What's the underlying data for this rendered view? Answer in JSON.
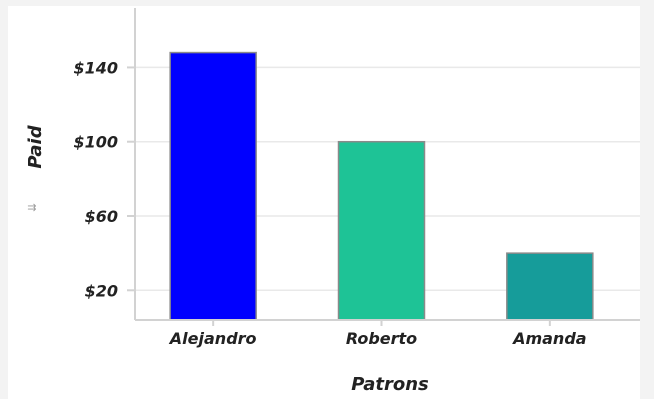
{
  "chart_data": {
    "type": "bar",
    "title": "",
    "xlabel": "Patrons",
    "ylabel": "Paid",
    "categories": [
      "Alejandro",
      "Roberto",
      "Amanda"
    ],
    "values": [
      148,
      100,
      40
    ],
    "bar_colors": [
      "#0000ff",
      "#1ec396",
      "#169c9a"
    ],
    "ylim": [
      4,
      172
    ],
    "yticks": [
      20,
      60,
      100,
      140
    ],
    "ytick_format": "$",
    "grid": true,
    "legend": "none"
  },
  "colors": {
    "background": "#f3f3f3",
    "card": "#ffffff",
    "gridline": "#e9e9e9",
    "axis": "#d2d2d2",
    "text": "#222222"
  },
  "icons": {
    "side_icon": "data-label-toggle-icon"
  }
}
